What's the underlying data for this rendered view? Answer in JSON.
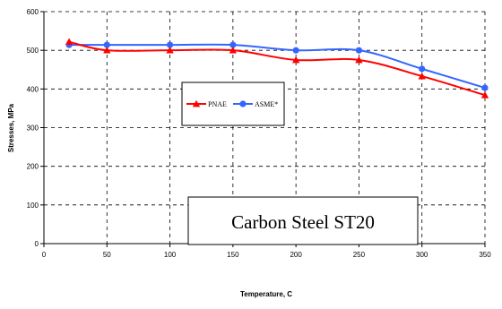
{
  "chart_data": {
    "type": "line",
    "xlabel": "Temperature, C",
    "ylabel": "Stresses, MPa",
    "xlim": [
      0,
      350
    ],
    "ylim": [
      0,
      600
    ],
    "xticks": [
      0,
      50,
      100,
      150,
      200,
      250,
      300,
      350
    ],
    "yticks": [
      0,
      100,
      200,
      300,
      400,
      500,
      600
    ],
    "grid": "dashed",
    "legend_position": "center-left",
    "annotation": "Carbon Steel ST20",
    "series": [
      {
        "name": "PNAE",
        "color": "#ff0000",
        "marker": "triangle",
        "x": [
          20,
          50,
          100,
          150,
          200,
          250,
          300,
          350
        ],
        "y": [
          522,
          500,
          500,
          500,
          475,
          475,
          433,
          384
        ]
      },
      {
        "name": "ASME*",
        "color": "#3366ff",
        "marker": "circle",
        "x": [
          20,
          50,
          100,
          150,
          200,
          250,
          300,
          350
        ],
        "y": [
          514,
          514,
          514,
          514,
          500,
          500,
          452,
          403
        ]
      }
    ]
  }
}
